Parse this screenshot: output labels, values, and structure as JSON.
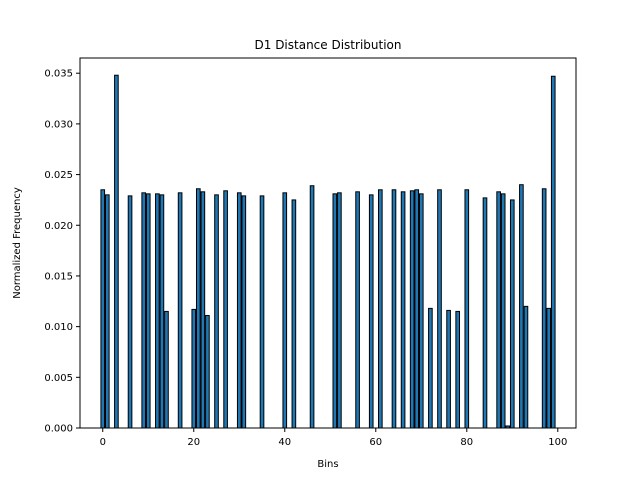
{
  "chart_data": {
    "type": "bar",
    "title": "D1 Distance Distribution",
    "xlabel": "Bins",
    "ylabel": "Normalized Frequency",
    "xlim": [
      -5,
      104
    ],
    "ylim": [
      0,
      0.0365
    ],
    "xticks": [
      0,
      20,
      40,
      60,
      80,
      100
    ],
    "yticks": [
      0.0,
      0.005,
      0.01,
      0.015,
      0.02,
      0.025,
      0.03,
      0.035
    ],
    "ytick_labels": [
      "0.000",
      "0.005",
      "0.010",
      "0.015",
      "0.020",
      "0.025",
      "0.030",
      "0.035"
    ],
    "bar_color": "#1f77b4",
    "edge_color": "#000000",
    "grid": false,
    "bins": [
      0,
      1,
      3,
      6,
      9,
      10,
      12,
      13,
      14,
      17,
      20,
      21,
      22,
      23,
      25,
      27,
      30,
      31,
      35,
      40,
      42,
      46,
      51,
      52,
      56,
      59,
      61,
      64,
      66,
      68,
      69,
      70,
      72,
      74,
      76,
      78,
      80,
      84,
      87,
      88,
      89,
      90,
      92,
      93,
      97,
      98,
      99
    ],
    "values": [
      0.0235,
      0.023,
      0.0348,
      0.0229,
      0.0232,
      0.0231,
      0.0231,
      0.023,
      0.0115,
      0.0232,
      0.0117,
      0.0236,
      0.0233,
      0.0111,
      0.023,
      0.0234,
      0.0232,
      0.0229,
      0.0229,
      0.0232,
      0.0225,
      0.0239,
      0.0231,
      0.0232,
      0.0233,
      0.023,
      0.0235,
      0.0235,
      0.0233,
      0.0234,
      0.0235,
      0.0231,
      0.0118,
      0.0235,
      0.0116,
      0.0115,
      0.0235,
      0.0227,
      0.0233,
      0.0231,
      0.0002,
      0.0225,
      0.024,
      0.012,
      0.0236,
      0.0118,
      0.0347
    ]
  }
}
